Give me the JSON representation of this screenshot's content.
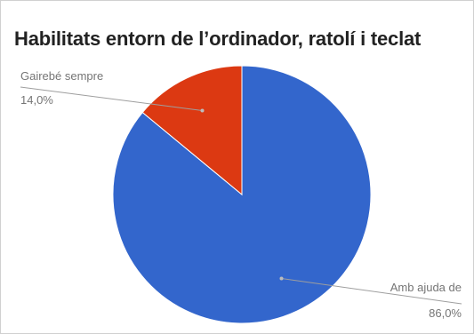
{
  "chart_data": {
    "type": "pie",
    "title": "Habilitats entorn de l’ordinador, ratolí i teclat",
    "slices": [
      {
        "label": "Amb ajuda de",
        "value": 86.0,
        "value_label": "86,0%",
        "color": "#3366cc"
      },
      {
        "label": "Gairebé sempre",
        "value": 14.0,
        "value_label": "14,0%",
        "color": "#dc3912"
      }
    ],
    "start_angle_deg": 0,
    "direction": "clockwise",
    "label_color": "#757575",
    "leader_color": "#9e9e9e"
  }
}
